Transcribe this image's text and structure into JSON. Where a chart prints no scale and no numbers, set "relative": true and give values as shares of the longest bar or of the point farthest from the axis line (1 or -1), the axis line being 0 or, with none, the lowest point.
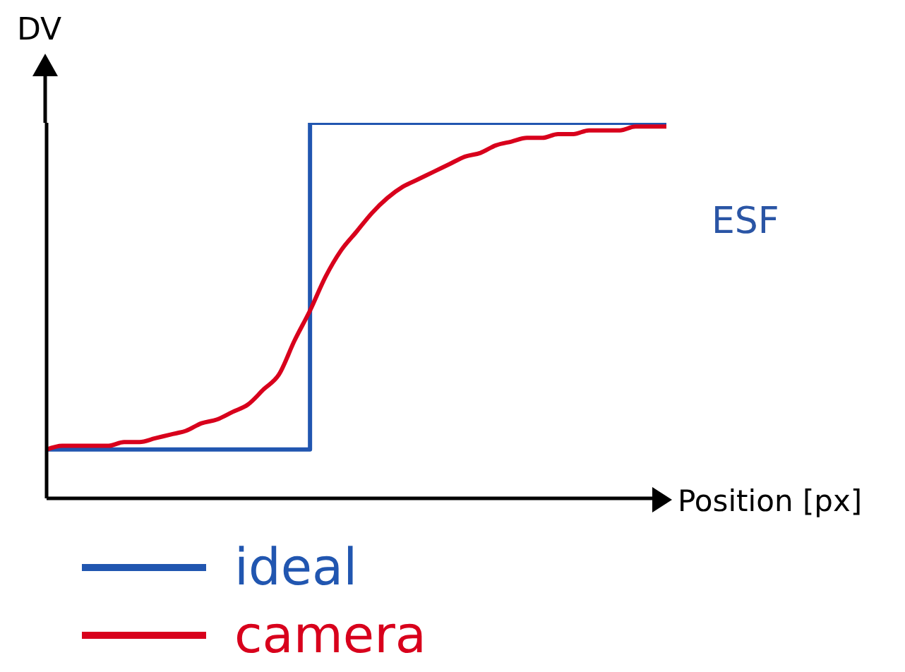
{
  "chart_data": {
    "type": "line",
    "relative": true,
    "xlabel": "Position [px]",
    "ylabel": "DV",
    "annotations": [
      "ESF"
    ],
    "legend": "bottom",
    "grid": false,
    "marker": "none",
    "line_style": "solid",
    "categories": [
      null,
      null,
      null,
      null,
      null,
      null,
      null,
      null,
      null,
      null,
      null,
      null,
      null,
      null,
      null,
      null,
      null,
      null,
      null,
      null,
      null,
      null,
      null,
      null,
      null,
      null,
      null,
      null,
      null,
      null,
      null,
      null,
      null,
      null,
      null,
      null,
      null,
      null,
      null,
      null,
      null
    ],
    "series": [
      {
        "name": "ideal",
        "type": "step",
        "color": "#2156b0",
        "values": [
          0.13,
          0.13,
          0.13,
          0.13,
          0.13,
          0.13,
          0.13,
          0.13,
          0.13,
          0.13,
          0.13,
          0.13,
          0.13,
          0.13,
          0.13,
          0.13,
          0.13,
          0.13,
          1,
          1,
          1,
          1,
          1,
          1,
          1,
          1,
          1,
          1,
          1,
          1,
          1,
          1,
          1,
          1,
          1,
          1,
          1,
          1,
          1,
          1,
          1
        ]
      },
      {
        "name": "camera",
        "type": "line",
        "color": "#d8001c",
        "values": [
          0.13,
          0.14,
          0.14,
          0.14,
          0.14,
          0.15,
          0.15,
          0.16,
          0.17,
          0.18,
          0.2,
          0.21,
          0.23,
          0.25,
          0.29,
          0.33,
          0.42,
          0.5,
          0.59,
          0.66,
          0.71,
          0.76,
          0.8,
          0.83,
          0.85,
          0.87,
          0.89,
          0.91,
          0.92,
          0.94,
          0.95,
          0.96,
          0.96,
          0.97,
          0.97,
          0.98,
          0.98,
          0.98,
          0.99,
          0.99,
          0.99
        ]
      }
    ]
  }
}
